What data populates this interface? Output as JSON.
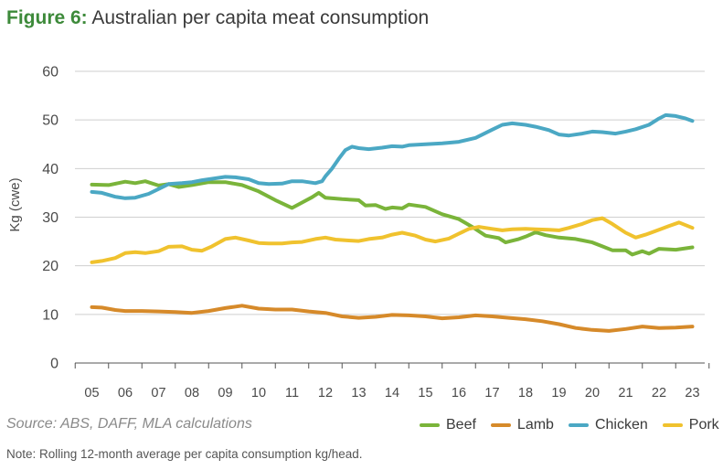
{
  "title": {
    "lead": "Figure 6:",
    "rest": "Australian per capita meat consumption"
  },
  "source": "Source: ABS, DAFF, MLA calculations",
  "note": "Note: Rolling 12-month average per capita consumption kg/head.",
  "chart_data": {
    "type": "line",
    "title": "Australian per capita meat consumption",
    "xlabel": "",
    "ylabel": "Kg (cwe)",
    "ylim": [
      0,
      60
    ],
    "yticks": [
      "0",
      "10",
      "20",
      "30",
      "40",
      "50",
      "60"
    ],
    "xticks": [
      "05",
      "06",
      "07",
      "08",
      "09",
      "10",
      "11",
      "12",
      "13",
      "14",
      "15",
      "16",
      "17",
      "18",
      "19",
      "20",
      "21",
      "22",
      "23"
    ],
    "grid": true,
    "legend_position": "bottom-right",
    "series": [
      {
        "name": "Beef",
        "color": "#7ab43a",
        "points": [
          [
            5,
            36.7
          ],
          [
            5.5,
            36.6
          ],
          [
            6,
            37.3
          ],
          [
            6.3,
            37.0
          ],
          [
            6.6,
            37.4
          ],
          [
            7,
            36.5
          ],
          [
            7.3,
            36.8
          ],
          [
            7.6,
            36.2
          ],
          [
            8,
            36.6
          ],
          [
            8.5,
            37.2
          ],
          [
            9,
            37.2
          ],
          [
            9.5,
            36.6
          ],
          [
            10,
            35.3
          ],
          [
            10.5,
            33.5
          ],
          [
            11,
            31.9
          ],
          [
            11.3,
            33.0
          ],
          [
            11.6,
            34.1
          ],
          [
            11.8,
            35.0
          ],
          [
            12,
            34.0
          ],
          [
            12.5,
            33.7
          ],
          [
            13,
            33.5
          ],
          [
            13.2,
            32.4
          ],
          [
            13.5,
            32.5
          ],
          [
            13.8,
            31.7
          ],
          [
            14,
            32.0
          ],
          [
            14.3,
            31.8
          ],
          [
            14.5,
            32.6
          ],
          [
            15,
            32.1
          ],
          [
            15.5,
            30.6
          ],
          [
            16,
            29.6
          ],
          [
            16.4,
            28.0
          ],
          [
            16.8,
            26.2
          ],
          [
            17.2,
            25.7
          ],
          [
            17.4,
            24.8
          ],
          [
            17.8,
            25.5
          ],
          [
            18,
            26.0
          ],
          [
            18.3,
            26.9
          ],
          [
            18.6,
            26.3
          ],
          [
            19,
            25.8
          ],
          [
            19.5,
            25.5
          ],
          [
            20,
            24.8
          ],
          [
            20.3,
            24.0
          ],
          [
            20.6,
            23.2
          ],
          [
            21,
            23.2
          ],
          [
            21.2,
            22.3
          ],
          [
            21.5,
            23.0
          ],
          [
            21.7,
            22.5
          ],
          [
            22,
            23.5
          ],
          [
            22.5,
            23.3
          ],
          [
            23,
            23.8
          ]
        ]
      },
      {
        "name": "Lamb",
        "color": "#d68a2a",
        "points": [
          [
            5,
            11.5
          ],
          [
            5.3,
            11.4
          ],
          [
            5.7,
            10.9
          ],
          [
            6,
            10.7
          ],
          [
            6.5,
            10.7
          ],
          [
            7,
            10.6
          ],
          [
            7.5,
            10.5
          ],
          [
            8,
            10.3
          ],
          [
            8.5,
            10.7
          ],
          [
            9,
            11.3
          ],
          [
            9.5,
            11.8
          ],
          [
            10,
            11.2
          ],
          [
            10.5,
            11.0
          ],
          [
            11,
            11.0
          ],
          [
            11.5,
            10.6
          ],
          [
            12,
            10.3
          ],
          [
            12.5,
            9.6
          ],
          [
            13,
            9.3
          ],
          [
            13.5,
            9.5
          ],
          [
            14,
            9.9
          ],
          [
            14.5,
            9.8
          ],
          [
            15,
            9.6
          ],
          [
            15.5,
            9.2
          ],
          [
            16,
            9.4
          ],
          [
            16.5,
            9.8
          ],
          [
            17,
            9.6
          ],
          [
            17.5,
            9.3
          ],
          [
            18,
            9.0
          ],
          [
            18.5,
            8.6
          ],
          [
            19,
            8.0
          ],
          [
            19.5,
            7.2
          ],
          [
            20,
            6.8
          ],
          [
            20.5,
            6.6
          ],
          [
            21,
            7.0
          ],
          [
            21.5,
            7.5
          ],
          [
            22,
            7.2
          ],
          [
            22.5,
            7.3
          ],
          [
            23,
            7.5
          ]
        ]
      },
      {
        "name": "Chicken",
        "color": "#4ba8c4",
        "points": [
          [
            5,
            35.2
          ],
          [
            5.3,
            35.0
          ],
          [
            5.7,
            34.2
          ],
          [
            6,
            33.9
          ],
          [
            6.3,
            34.0
          ],
          [
            6.7,
            34.8
          ],
          [
            7,
            35.8
          ],
          [
            7.3,
            36.8
          ],
          [
            7.7,
            37.0
          ],
          [
            8,
            37.2
          ],
          [
            8.3,
            37.6
          ],
          [
            8.7,
            38.0
          ],
          [
            9,
            38.3
          ],
          [
            9.3,
            38.2
          ],
          [
            9.7,
            37.8
          ],
          [
            10,
            37.0
          ],
          [
            10.3,
            36.8
          ],
          [
            10.7,
            36.9
          ],
          [
            11,
            37.4
          ],
          [
            11.3,
            37.4
          ],
          [
            11.7,
            37.0
          ],
          [
            11.9,
            37.4
          ],
          [
            12,
            38.4
          ],
          [
            12.2,
            40.0
          ],
          [
            12.4,
            42.0
          ],
          [
            12.6,
            43.8
          ],
          [
            12.8,
            44.5
          ],
          [
            13,
            44.2
          ],
          [
            13.3,
            44.0
          ],
          [
            13.7,
            44.3
          ],
          [
            14,
            44.6
          ],
          [
            14.3,
            44.5
          ],
          [
            14.5,
            44.8
          ],
          [
            15,
            45.0
          ],
          [
            15.5,
            45.2
          ],
          [
            16,
            45.5
          ],
          [
            16.5,
            46.3
          ],
          [
            17,
            48.0
          ],
          [
            17.3,
            49.0
          ],
          [
            17.6,
            49.3
          ],
          [
            18,
            49.0
          ],
          [
            18.3,
            48.6
          ],
          [
            18.7,
            47.9
          ],
          [
            19,
            47.0
          ],
          [
            19.3,
            46.8
          ],
          [
            19.7,
            47.2
          ],
          [
            20,
            47.6
          ],
          [
            20.3,
            47.5
          ],
          [
            20.7,
            47.2
          ],
          [
            21,
            47.6
          ],
          [
            21.3,
            48.1
          ],
          [
            21.7,
            49.0
          ],
          [
            22,
            50.3
          ],
          [
            22.2,
            51.0
          ],
          [
            22.5,
            50.8
          ],
          [
            22.8,
            50.3
          ],
          [
            23,
            49.8
          ]
        ]
      },
      {
        "name": "Pork",
        "color": "#f0c22e",
        "points": [
          [
            5,
            20.7
          ],
          [
            5.3,
            21.0
          ],
          [
            5.7,
            21.6
          ],
          [
            6,
            22.6
          ],
          [
            6.3,
            22.8
          ],
          [
            6.6,
            22.6
          ],
          [
            7,
            23.0
          ],
          [
            7.3,
            23.9
          ],
          [
            7.7,
            24.0
          ],
          [
            8,
            23.3
          ],
          [
            8.3,
            23.1
          ],
          [
            8.6,
            24.0
          ],
          [
            9,
            25.5
          ],
          [
            9.3,
            25.8
          ],
          [
            9.7,
            25.2
          ],
          [
            10,
            24.7
          ],
          [
            10.3,
            24.6
          ],
          [
            10.7,
            24.6
          ],
          [
            11,
            24.8
          ],
          [
            11.3,
            24.9
          ],
          [
            11.7,
            25.5
          ],
          [
            12,
            25.8
          ],
          [
            12.3,
            25.4
          ],
          [
            12.7,
            25.2
          ],
          [
            13,
            25.1
          ],
          [
            13.3,
            25.5
          ],
          [
            13.7,
            25.8
          ],
          [
            14,
            26.4
          ],
          [
            14.3,
            26.8
          ],
          [
            14.7,
            26.2
          ],
          [
            15,
            25.4
          ],
          [
            15.3,
            25.0
          ],
          [
            15.7,
            25.6
          ],
          [
            16,
            26.6
          ],
          [
            16.3,
            27.6
          ],
          [
            16.6,
            28.0
          ],
          [
            17,
            27.6
          ],
          [
            17.3,
            27.3
          ],
          [
            17.6,
            27.5
          ],
          [
            18,
            27.6
          ],
          [
            18.3,
            27.5
          ],
          [
            18.7,
            27.4
          ],
          [
            19,
            27.3
          ],
          [
            19.3,
            27.8
          ],
          [
            19.7,
            28.6
          ],
          [
            20,
            29.4
          ],
          [
            20.3,
            29.8
          ],
          [
            20.6,
            28.6
          ],
          [
            21,
            26.8
          ],
          [
            21.3,
            25.8
          ],
          [
            21.6,
            26.4
          ],
          [
            22,
            27.4
          ],
          [
            22.3,
            28.2
          ],
          [
            22.6,
            28.9
          ],
          [
            23,
            27.8
          ]
        ]
      }
    ]
  }
}
